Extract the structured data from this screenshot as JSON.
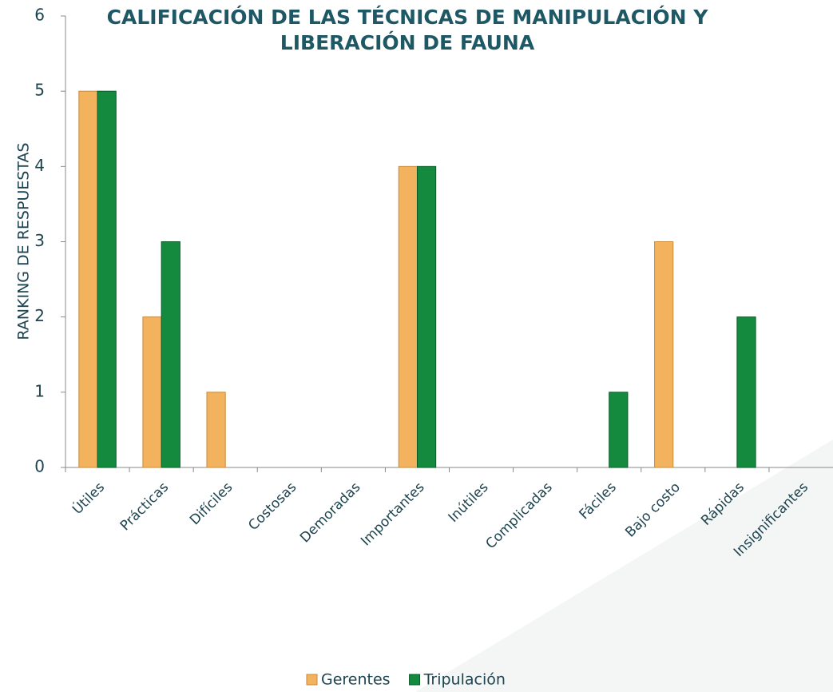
{
  "chart_data": {
    "type": "bar",
    "title": "CALIFICACIÓN DE LAS TÉCNICAS DE MANIPULACIÓN Y LIBERACIÓN DE FAUNA",
    "y_label": "RANKING DE RESPUESTAS",
    "categories": [
      "Útiles",
      "Prácticas",
      "Difíciles",
      "Costosas",
      "Demoradas",
      "Importantes",
      "Inútiles",
      "Complicadas",
      "Fáciles",
      "Bajo costo",
      "Rápidas",
      "Insignificantes"
    ],
    "series": [
      {
        "name": "Gerentes",
        "color": "#f2b25e",
        "values": [
          5,
          2,
          1,
          0,
          0,
          4,
          0,
          0,
          0,
          3,
          0,
          0
        ]
      },
      {
        "name": "Tripulación",
        "color": "#138a3e",
        "values": [
          5,
          3,
          0,
          0,
          0,
          4,
          0,
          0,
          1,
          0,
          2,
          0
        ]
      }
    ],
    "ylim": [
      0,
      6
    ],
    "yticks": [
      0,
      1,
      2,
      3,
      4,
      5,
      6
    ],
    "legend": "bottom"
  }
}
